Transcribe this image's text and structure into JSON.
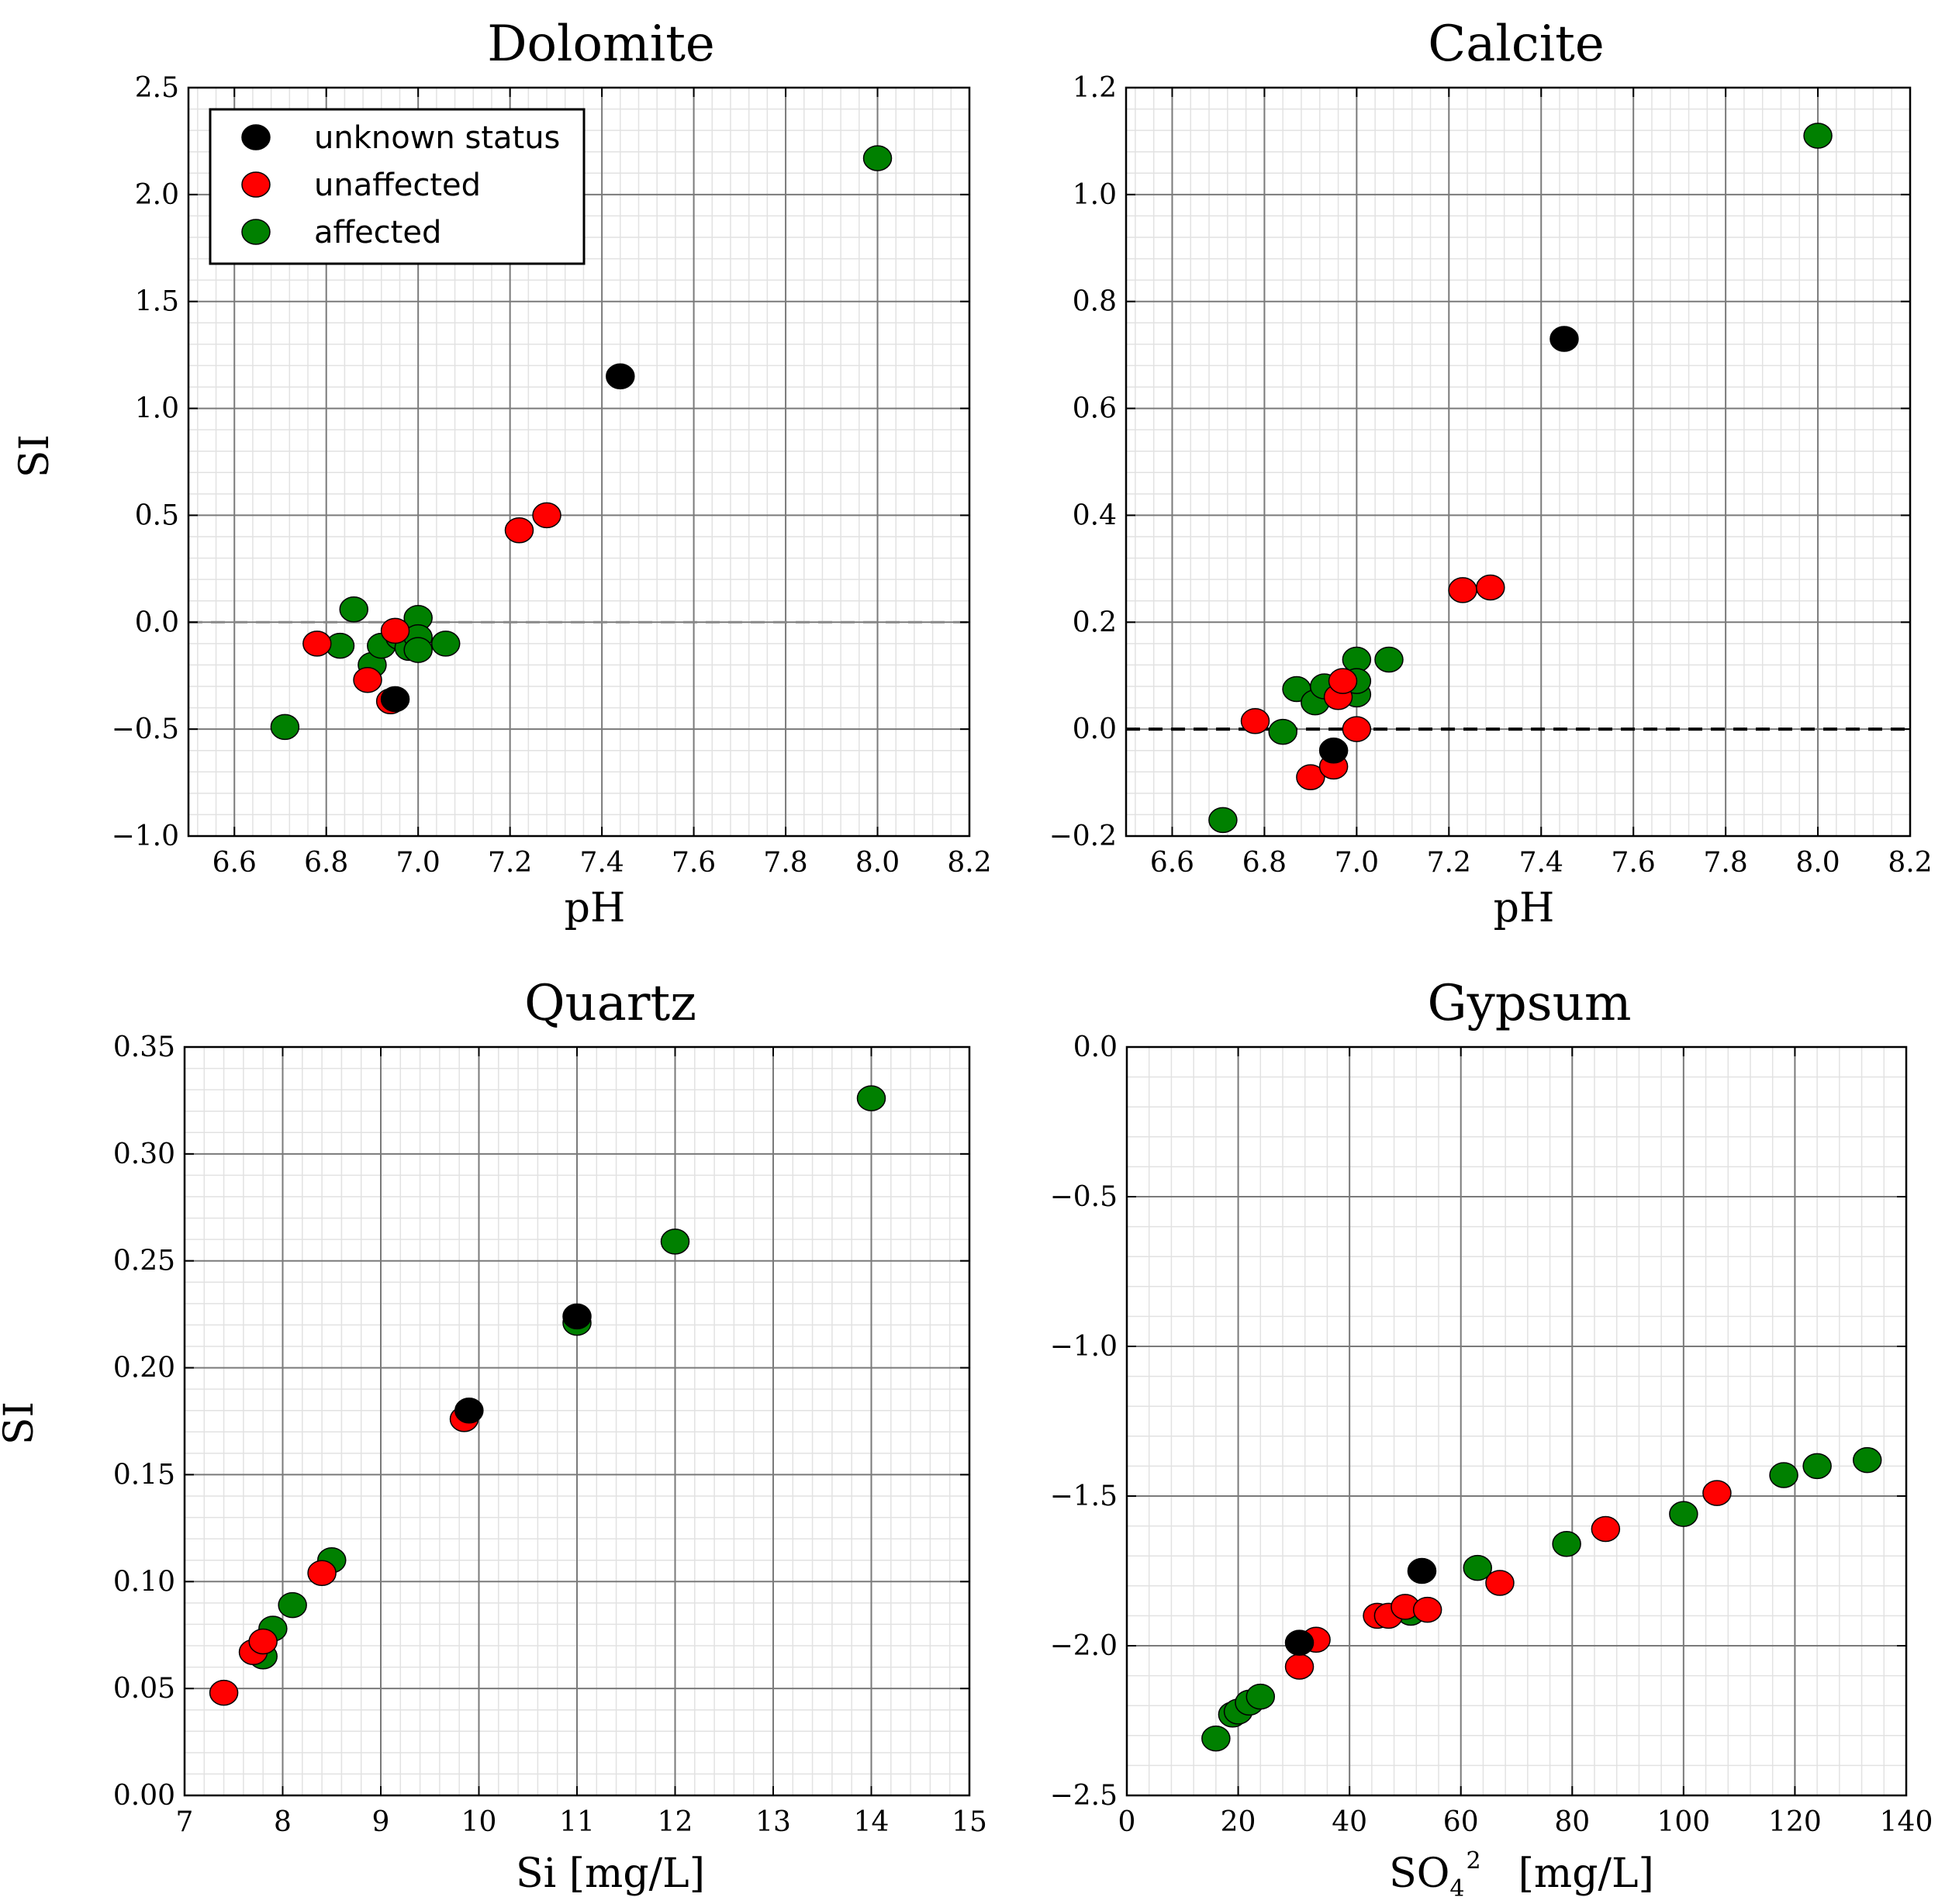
{
  "colors": {
    "unknown status": "#000000",
    "unaffected": "#ff0000",
    "affected": "#008000"
  },
  "legend": {
    "placement": "upper-left of Dolomite panel",
    "entries": [
      "unknown status",
      "unaffected",
      "affected"
    ]
  },
  "chart_data": [
    {
      "type": "scatter",
      "title": "Dolomite",
      "xlabel": "pH",
      "ylabel": "SI",
      "xlim": [
        6.5,
        8.2
      ],
      "ylim": [
        -1.0,
        2.5
      ],
      "xticks": [
        6.6,
        6.8,
        7.0,
        7.2,
        7.4,
        7.6,
        7.8,
        8.0,
        8.2
      ],
      "xtick_labels": [
        "6.6",
        "6.8",
        "7.0",
        "7.2",
        "7.4",
        "7.6",
        "7.8",
        "8.0",
        "8.2"
      ],
      "yticks": [
        -1.0,
        -0.5,
        0.0,
        0.5,
        1.0,
        1.5,
        2.0,
        2.5
      ],
      "ytick_labels": [
        "−1.0",
        "−0.5",
        "0.0",
        "0.5",
        "1.0",
        "1.5",
        "2.0",
        "2.5"
      ],
      "reference_line": {
        "y": 0.0,
        "style": "dashed",
        "color": "#888888"
      },
      "grid": true,
      "series": [
        {
          "name": "unknown status",
          "points": [
            [
              7.44,
              1.15
            ],
            [
              6.95,
              -0.36
            ]
          ]
        },
        {
          "name": "unaffected",
          "points": [
            [
              6.78,
              -0.1
            ],
            [
              6.89,
              -0.27
            ],
            [
              6.94,
              -0.37
            ],
            [
              6.95,
              -0.04
            ],
            [
              7.22,
              0.43
            ],
            [
              7.28,
              0.5
            ]
          ]
        },
        {
          "name": "affected",
          "points": [
            [
              6.71,
              -0.49
            ],
            [
              6.83,
              -0.11
            ],
            [
              6.86,
              0.06
            ],
            [
              6.9,
              -0.2
            ],
            [
              6.92,
              -0.11
            ],
            [
              6.96,
              -0.07
            ],
            [
              6.98,
              -0.12
            ],
            [
              7.0,
              0.02
            ],
            [
              7.0,
              -0.07
            ],
            [
              7.0,
              -0.13
            ],
            [
              7.06,
              -0.1
            ],
            [
              8.0,
              2.17
            ]
          ]
        }
      ]
    },
    {
      "type": "scatter",
      "title": "Calcite",
      "xlabel": "pH",
      "ylabel": "",
      "xlim": [
        6.5,
        8.2
      ],
      "ylim": [
        -0.2,
        1.2
      ],
      "xticks": [
        6.6,
        6.8,
        7.0,
        7.2,
        7.4,
        7.6,
        7.8,
        8.0,
        8.2
      ],
      "xtick_labels": [
        "6.6",
        "6.8",
        "7.0",
        "7.2",
        "7.4",
        "7.6",
        "7.8",
        "8.0",
        "8.2"
      ],
      "yticks": [
        -0.2,
        0.0,
        0.2,
        0.4,
        0.6,
        0.8,
        1.0,
        1.2
      ],
      "ytick_labels": [
        "−0.2",
        "0.0",
        "0.2",
        "0.4",
        "0.6",
        "0.8",
        "1.0",
        "1.2"
      ],
      "reference_line": {
        "y": 0.0,
        "style": "dashed",
        "color": "#000000"
      },
      "grid": true,
      "series": [
        {
          "name": "unknown status",
          "points": [
            [
              7.45,
              0.73
            ],
            [
              6.95,
              -0.04
            ]
          ]
        },
        {
          "name": "unaffected",
          "points": [
            [
              6.78,
              0.015
            ],
            [
              6.9,
              -0.09
            ],
            [
              6.95,
              -0.07
            ],
            [
              6.96,
              0.06
            ],
            [
              6.97,
              0.09
            ],
            [
              7.0,
              0.0
            ],
            [
              7.23,
              0.26
            ],
            [
              7.29,
              0.265
            ]
          ]
        },
        {
          "name": "affected",
          "points": [
            [
              6.71,
              -0.17
            ],
            [
              6.84,
              -0.005
            ],
            [
              6.87,
              0.075
            ],
            [
              6.91,
              0.05
            ],
            [
              6.93,
              0.08
            ],
            [
              6.98,
              0.09
            ],
            [
              7.0,
              0.13
            ],
            [
              7.0,
              0.065
            ],
            [
              7.0,
              0.09
            ],
            [
              7.07,
              0.13
            ],
            [
              8.0,
              1.11
            ]
          ]
        }
      ]
    },
    {
      "type": "scatter",
      "title": "Quartz",
      "xlabel": "Si [mg/L]",
      "ylabel": "SI",
      "xlim": [
        7,
        15
      ],
      "ylim": [
        0.0,
        0.35
      ],
      "xticks": [
        7,
        8,
        9,
        10,
        11,
        12,
        13,
        14,
        15
      ],
      "xtick_labels": [
        "7",
        "8",
        "9",
        "10",
        "11",
        "12",
        "13",
        "14",
        "15"
      ],
      "yticks": [
        0.0,
        0.05,
        0.1,
        0.15,
        0.2,
        0.25,
        0.3,
        0.35
      ],
      "ytick_labels": [
        "0.00",
        "0.05",
        "0.10",
        "0.15",
        "0.20",
        "0.25",
        "0.30",
        "0.35"
      ],
      "grid": true,
      "series": [
        {
          "name": "unknown status",
          "points": [
            [
              9.9,
              0.18
            ],
            [
              11.0,
              0.224
            ]
          ]
        },
        {
          "name": "unaffected",
          "points": [
            [
              7.4,
              0.048
            ],
            [
              7.7,
              0.067
            ],
            [
              7.8,
              0.072
            ],
            [
              8.4,
              0.104
            ],
            [
              9.85,
              0.176
            ]
          ]
        },
        {
          "name": "affected",
          "points": [
            [
              7.8,
              0.065
            ],
            [
              7.9,
              0.078
            ],
            [
              8.1,
              0.089
            ],
            [
              8.5,
              0.11
            ],
            [
              11.0,
              0.221
            ],
            [
              12.0,
              0.259
            ],
            [
              14.0,
              0.326
            ]
          ]
        }
      ]
    },
    {
      "type": "scatter",
      "title": "Gypsum",
      "xlabel": "SO4 2- [mg/L]",
      "xlabel_main": "SO",
      "xlabel_sub": "4",
      "xlabel_sup": "2",
      "xlabel_unit": "[mg/L]",
      "ylabel": "",
      "xlim": [
        0,
        140
      ],
      "ylim": [
        -2.5,
        0.0
      ],
      "xticks": [
        0,
        20,
        40,
        60,
        80,
        100,
        120,
        140
      ],
      "xtick_labels": [
        "0",
        "20",
        "40",
        "60",
        "80",
        "100",
        "120",
        "140"
      ],
      "yticks": [
        -2.5,
        -2.0,
        -1.5,
        -1.0,
        -0.5,
        0.0
      ],
      "ytick_labels": [
        "−2.5",
        "−2.0",
        "−1.5",
        "−1.0",
        "−0.5",
        "0.0"
      ],
      "grid": true,
      "series": [
        {
          "name": "unknown status",
          "points": [
            [
              31,
              -1.99
            ],
            [
              53,
              -1.75
            ]
          ]
        },
        {
          "name": "unaffected",
          "points": [
            [
              31,
              -2.07
            ],
            [
              34,
              -1.98
            ],
            [
              45,
              -1.9
            ],
            [
              47,
              -1.9
            ],
            [
              50,
              -1.87
            ],
            [
              54,
              -1.88
            ],
            [
              67,
              -1.79
            ],
            [
              86,
              -1.61
            ],
            [
              106,
              -1.49
            ]
          ]
        },
        {
          "name": "affected",
          "points": [
            [
              16,
              -2.31
            ],
            [
              19,
              -2.23
            ],
            [
              20,
              -2.22
            ],
            [
              22,
              -2.19
            ],
            [
              24,
              -2.17
            ],
            [
              51,
              -1.89
            ],
            [
              63,
              -1.74
            ],
            [
              79,
              -1.66
            ],
            [
              100,
              -1.56
            ],
            [
              118,
              -1.43
            ],
            [
              124,
              -1.4
            ],
            [
              133,
              -1.38
            ]
          ]
        }
      ]
    }
  ]
}
